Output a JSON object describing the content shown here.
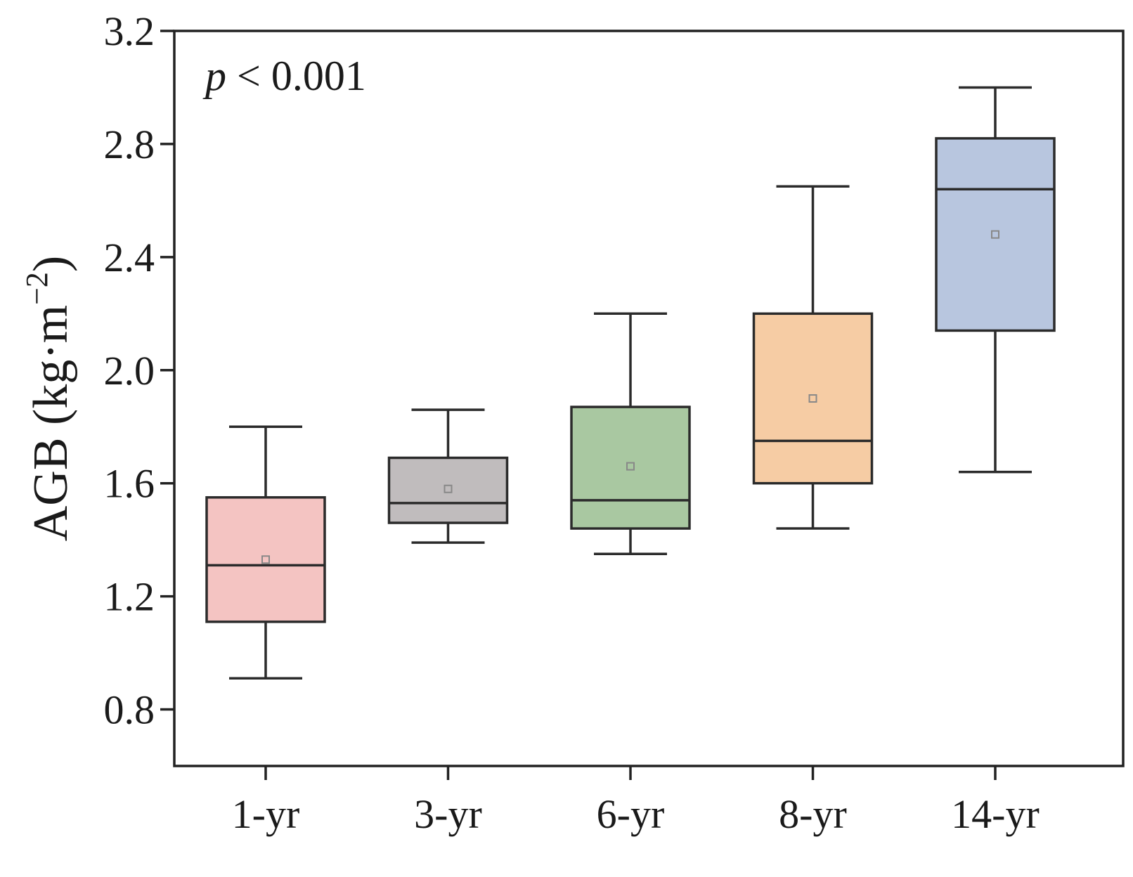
{
  "chart_data": {
    "type": "box",
    "ylabel_base": "AGB (kg·m",
    "ylabel_sup": "−2",
    "ylabel_close": ")",
    "xlabel": "",
    "ylim": [
      0.6,
      3.2
    ],
    "yticks": [
      0.8,
      1.2,
      1.6,
      2.0,
      2.4,
      2.8,
      3.2
    ],
    "ytick_labels": [
      "0.8",
      "1.2",
      "1.6",
      "2.0",
      "2.4",
      "2.8",
      "3.2"
    ],
    "annotation": {
      "p": "p",
      "rest": " < 0.001"
    },
    "categories": [
      "1-yr",
      "3-yr",
      "6-yr",
      "8-yr",
      "14-yr"
    ],
    "boxes": [
      {
        "label": "1-yr",
        "whisker_low": 0.91,
        "q1": 1.11,
        "median": 1.31,
        "q3": 1.55,
        "whisker_high": 1.8,
        "mean": 1.33,
        "color": "#f4c4c2"
      },
      {
        "label": "3-yr",
        "whisker_low": 1.39,
        "q1": 1.46,
        "median": 1.53,
        "q3": 1.69,
        "whisker_high": 1.86,
        "mean": 1.58,
        "color": "#c0bcbd"
      },
      {
        "label": "6-yr",
        "whisker_low": 1.35,
        "q1": 1.44,
        "median": 1.54,
        "q3": 1.87,
        "whisker_high": 2.2,
        "mean": 1.66,
        "color": "#a9c8a1"
      },
      {
        "label": "8-yr",
        "whisker_low": 1.44,
        "q1": 1.6,
        "median": 1.75,
        "q3": 2.2,
        "whisker_high": 2.65,
        "mean": 1.9,
        "color": "#f6cca4"
      },
      {
        "label": "14-yr",
        "whisker_low": 1.64,
        "q1": 2.14,
        "median": 2.64,
        "q3": 2.82,
        "whisker_high": 3.0,
        "mean": 2.48,
        "color": "#b8c6df"
      }
    ]
  }
}
